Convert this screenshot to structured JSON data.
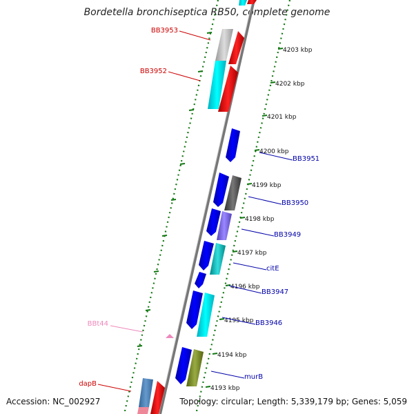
{
  "title": "Bordetella bronchiseptica RB50, complete genome",
  "footer": {
    "accession": "Accession: NC_002927",
    "summary": "Topology: circular; Length: 5,339,179 bp; Genes: 5,059"
  },
  "ticks": [
    {
      "label": "4193 kbp"
    },
    {
      "label": "4194 kbp"
    },
    {
      "label": "4195 kbp"
    },
    {
      "label": "4196 kbp"
    },
    {
      "label": "4197 kbp"
    },
    {
      "label": "4198 kbp"
    },
    {
      "label": "4199 kbp"
    },
    {
      "label": "4200 kbp"
    },
    {
      "label": "4201 kbp"
    },
    {
      "label": "4202 kbp"
    },
    {
      "label": "4203 kbp"
    }
  ],
  "gene_labels": [
    {
      "text": "BB3953",
      "color": "#cc0000"
    },
    {
      "text": "BB3952",
      "color": "#cc0000"
    },
    {
      "text": "BB3951",
      "color": "#0000aa"
    },
    {
      "text": "BB3950",
      "color": "#0000aa"
    },
    {
      "text": "BB3949",
      "color": "#0000aa"
    },
    {
      "text": "citE",
      "color": "#0000aa"
    },
    {
      "text": "BB3947",
      "color": "#0000aa"
    },
    {
      "text": "BB3946",
      "color": "#0000aa"
    },
    {
      "text": "BBt44",
      "color": "#ee88bb"
    },
    {
      "text": "murB",
      "color": "#0000aa"
    },
    {
      "text": "dapB",
      "color": "#cc0000"
    }
  ],
  "colors": {
    "backbone": "#888888",
    "tick": "#117711",
    "forward": "#0000ee",
    "reverse": "#ee0000",
    "cyan": "#00e5ee",
    "grey": "#bbbbbb",
    "darkgrey": "#555555",
    "purple": "#7766dd",
    "teal": "#11bbbb",
    "olive": "#778822",
    "steelblue": "#4682b4",
    "pink": "#ee88bb"
  }
}
